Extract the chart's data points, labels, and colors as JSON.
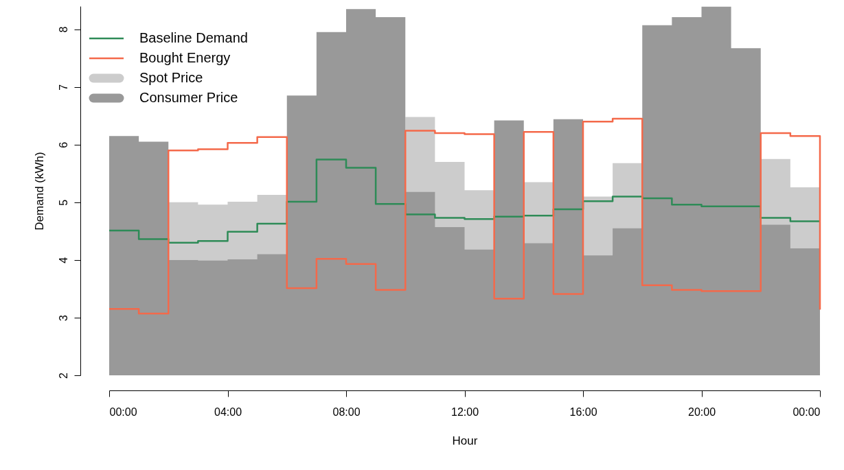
{
  "chart_data": {
    "type": "area",
    "xlabel": "Hour",
    "ylabel": "Demand (kWh)",
    "x": [
      0,
      1,
      2,
      3,
      4,
      5,
      6,
      7,
      8,
      9,
      10,
      11,
      12,
      13,
      14,
      15,
      16,
      17,
      18,
      19,
      20,
      21,
      22,
      23,
      24
    ],
    "series": [
      {
        "name": "Baseline Demand",
        "type": "step",
        "color": "#2e8b57",
        "values": [
          4.51,
          4.36,
          4.3,
          4.33,
          4.49,
          4.63,
          5.01,
          5.74,
          5.6,
          4.97,
          4.79,
          4.73,
          4.71,
          4.75,
          4.77,
          4.88,
          5.02,
          5.1,
          5.07,
          4.96,
          4.93,
          4.93,
          4.73,
          4.67,
          4.67
        ]
      },
      {
        "name": "Bought Energy",
        "type": "step",
        "color": "#f4694a",
        "values": [
          3.15,
          3.07,
          5.9,
          5.92,
          6.03,
          6.13,
          3.51,
          4.02,
          3.93,
          3.48,
          6.24,
          6.2,
          6.18,
          3.33,
          6.22,
          3.41,
          6.4,
          6.45,
          3.56,
          3.48,
          3.46,
          3.46,
          6.2,
          6.15,
          3.14
        ]
      },
      {
        "name": "Spot Price",
        "color": "#cccccc",
        "values": [
          null,
          null,
          5.0,
          4.96,
          5.01,
          5.13,
          null,
          null,
          null,
          null,
          6.48,
          5.7,
          5.21,
          null,
          5.35,
          null,
          5.1,
          5.68,
          null,
          null,
          null,
          null,
          5.75,
          5.26,
          5.26
        ]
      },
      {
        "name": "Consumer Price",
        "color": "#999999",
        "values": [
          6.15,
          6.05,
          4.0,
          3.99,
          4.01,
          4.1,
          6.85,
          7.95,
          8.35,
          8.21,
          5.18,
          4.57,
          4.18,
          6.42,
          4.29,
          6.44,
          4.08,
          4.55,
          8.07,
          8.21,
          8.39,
          7.67,
          4.61,
          4.2,
          6.31
        ]
      }
    ],
    "xlim": [
      0,
      24
    ],
    "ylim": [
      2,
      8.4
    ],
    "xticks": [
      {
        "value": 0,
        "label": "00:00"
      },
      {
        "value": 4,
        "label": "04:00"
      },
      {
        "value": 8,
        "label": "08:00"
      },
      {
        "value": 12,
        "label": "12:00"
      },
      {
        "value": 16,
        "label": "16:00"
      },
      {
        "value": 20,
        "label": "20:00"
      },
      {
        "value": 24,
        "label": "00:00"
      }
    ],
    "yticks": [
      2,
      3,
      4,
      5,
      6,
      7,
      8
    ],
    "legend": "top left",
    "grid": false
  }
}
